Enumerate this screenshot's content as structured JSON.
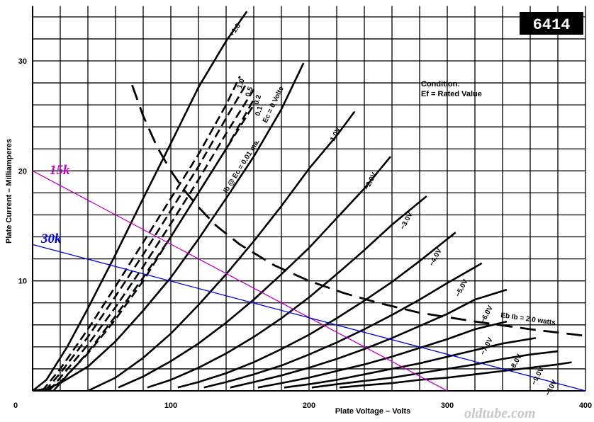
{
  "chart_data": {
    "type": "line",
    "tube_id": "6414",
    "xlabel": "Plate Voltage – Volts",
    "ylabel": "Plate Current – Milliamperes",
    "xlim": [
      0,
      400
    ],
    "ylim": [
      0,
      35
    ],
    "x_ticks": [
      0,
      100,
      200,
      300,
      400
    ],
    "y_ticks": [
      10,
      20,
      30
    ],
    "grid": true,
    "grid_x_step": 20,
    "grid_y_step": 2,
    "condition": {
      "line1": "Condition:",
      "line2": "Ef = Rated Value"
    },
    "watermark": "oldtube.com",
    "plate_curves": [
      {
        "name": "+1.0",
        "label": "+1.0",
        "style": "solid",
        "points": [
          [
            0,
            0
          ],
          [
            10,
            1
          ],
          [
            25,
            4
          ],
          [
            40,
            7.5
          ],
          [
            60,
            12.4
          ],
          [
            80,
            17.5
          ],
          [
            100,
            22.5
          ],
          [
            120,
            27.6
          ],
          [
            140,
            31.8
          ],
          [
            155,
            34.5
          ]
        ]
      },
      {
        "name": "Ec = 0 Volts",
        "label": "Ec = 0 Volts",
        "style": "solid",
        "points": [
          [
            0,
            0
          ],
          [
            10,
            0.2
          ],
          [
            20,
            0.7
          ],
          [
            40,
            2.2
          ],
          [
            60,
            4.5
          ],
          [
            80,
            7.3
          ],
          [
            100,
            10.3
          ],
          [
            120,
            13.8
          ],
          [
            140,
            17.5
          ],
          [
            160,
            21.3
          ],
          [
            180,
            25.6
          ],
          [
            196,
            29.8
          ]
        ]
      },
      {
        "name": "Ib @ Ec = 0.01 ma.",
        "label": "Ib @ Ec = 0.01 ma.",
        "style": "dashed",
        "points": [
          [
            10,
            0
          ],
          [
            20,
            0.8
          ],
          [
            40,
            3.4
          ],
          [
            60,
            6.5
          ],
          [
            80,
            10
          ],
          [
            100,
            14
          ],
          [
            120,
            18
          ],
          [
            140,
            22
          ],
          [
            160,
            26
          ]
        ]
      },
      {
        "name": "-1.0V",
        "label": "−1.0V",
        "style": "solid",
        "points": [
          [
            40,
            0
          ],
          [
            60,
            1.2
          ],
          [
            80,
            3
          ],
          [
            100,
            5.2
          ],
          [
            120,
            7.8
          ],
          [
            140,
            10.6
          ],
          [
            160,
            13.6
          ],
          [
            180,
            16.8
          ],
          [
            200,
            20.2
          ],
          [
            220,
            23.2
          ],
          [
            233,
            25.4
          ]
        ]
      },
      {
        "name": "-2.0V",
        "label": "−2.0V",
        "style": "solid",
        "points": [
          [
            62,
            0.3
          ],
          [
            80,
            1.3
          ],
          [
            100,
            2.7
          ],
          [
            120,
            4.3
          ],
          [
            140,
            6.2
          ],
          [
            160,
            8.3
          ],
          [
            180,
            10.6
          ],
          [
            200,
            13
          ],
          [
            220,
            15.7
          ],
          [
            240,
            18.4
          ],
          [
            259,
            21.3
          ]
        ]
      },
      {
        "name": "-3.0V",
        "label": "−3.0V",
        "style": "solid",
        "points": [
          [
            83,
            0.3
          ],
          [
            100,
            1
          ],
          [
            120,
            2.1
          ],
          [
            140,
            3.4
          ],
          [
            160,
            4.9
          ],
          [
            180,
            6.6
          ],
          [
            200,
            8.5
          ],
          [
            220,
            10.6
          ],
          [
            240,
            12.8
          ],
          [
            260,
            15.1
          ],
          [
            285,
            17.7
          ]
        ]
      },
      {
        "name": "-4.0V",
        "label": "−4.0V",
        "style": "solid",
        "points": [
          [
            105,
            0.3
          ],
          [
            120,
            0.8
          ],
          [
            140,
            1.6
          ],
          [
            160,
            2.6
          ],
          [
            180,
            3.8
          ],
          [
            200,
            5.1
          ],
          [
            220,
            6.6
          ],
          [
            240,
            8.2
          ],
          [
            260,
            9.9
          ],
          [
            280,
            11.8
          ],
          [
            306,
            14.4
          ]
        ]
      },
      {
        "name": "-5.0V",
        "label": "−5.0V",
        "style": "solid",
        "points": [
          [
            124,
            0.3
          ],
          [
            140,
            0.8
          ],
          [
            160,
            1.5
          ],
          [
            180,
            2.3
          ],
          [
            200,
            3.3
          ],
          [
            220,
            4.4
          ],
          [
            240,
            5.6
          ],
          [
            260,
            6.9
          ],
          [
            280,
            8.3
          ],
          [
            300,
            9.8
          ],
          [
            325,
            11.6
          ]
        ]
      },
      {
        "name": "-6.0V",
        "label": "−6.0V",
        "style": "solid",
        "points": [
          [
            143,
            0.3
          ],
          [
            160,
            0.8
          ],
          [
            180,
            1.4
          ],
          [
            200,
            2.1
          ],
          [
            220,
            2.9
          ],
          [
            240,
            3.8
          ],
          [
            260,
            4.8
          ],
          [
            280,
            5.9
          ],
          [
            300,
            7
          ],
          [
            320,
            8.3
          ],
          [
            343,
            9.2
          ]
        ]
      },
      {
        "name": "-7.0V",
        "label": "−7.0V",
        "style": "solid",
        "points": [
          [
            163,
            0.3
          ],
          [
            180,
            0.7
          ],
          [
            200,
            1.2
          ],
          [
            220,
            1.8
          ],
          [
            240,
            2.4
          ],
          [
            260,
            3.1
          ],
          [
            280,
            3.9
          ],
          [
            300,
            4.7
          ],
          [
            320,
            5.6
          ],
          [
            343,
            6.3
          ]
        ]
      },
      {
        "name": "-8.0V",
        "label": "−8.0V",
        "style": "solid",
        "points": [
          [
            182,
            0.3
          ],
          [
            200,
            0.6
          ],
          [
            220,
            1
          ],
          [
            240,
            1.5
          ],
          [
            260,
            2
          ],
          [
            280,
            2.5
          ],
          [
            300,
            3.1
          ],
          [
            320,
            3.7
          ],
          [
            340,
            4.3
          ],
          [
            364,
            4.8
          ]
        ]
      },
      {
        "name": "-9.0V",
        "label": "−9.0V",
        "style": "solid",
        "points": [
          [
            202,
            0.3
          ],
          [
            220,
            0.6
          ],
          [
            240,
            0.9
          ],
          [
            260,
            1.2
          ],
          [
            280,
            1.6
          ],
          [
            300,
            2
          ],
          [
            320,
            2.4
          ],
          [
            340,
            2.9
          ],
          [
            360,
            3.3
          ],
          [
            380,
            3.6
          ]
        ]
      },
      {
        "name": "-10V",
        "label": "−10V",
        "style": "solid",
        "points": [
          [
            222,
            0.3
          ],
          [
            240,
            0.5
          ],
          [
            260,
            0.7
          ],
          [
            280,
            1
          ],
          [
            300,
            1.2
          ],
          [
            320,
            1.5
          ],
          [
            340,
            1.8
          ],
          [
            360,
            2.1
          ],
          [
            380,
            2.4
          ],
          [
            390,
            2.6
          ]
        ]
      }
    ],
    "dashed_grid_curves": [
      {
        "label": "1.0",
        "points": [
          [
            7,
            0
          ],
          [
            20,
            2
          ],
          [
            40,
            5.6
          ],
          [
            60,
            9.5
          ],
          [
            80,
            13.5
          ],
          [
            100,
            17.5
          ],
          [
            120,
            21.5
          ],
          [
            140,
            26
          ],
          [
            150,
            28.6
          ]
        ]
      },
      {
        "label": "0.5",
        "points": [
          [
            9,
            0
          ],
          [
            20,
            1.6
          ],
          [
            40,
            4.9
          ],
          [
            60,
            8.6
          ],
          [
            80,
            12.4
          ],
          [
            100,
            16.4
          ],
          [
            120,
            20.4
          ],
          [
            140,
            24.8
          ],
          [
            155,
            28
          ]
        ]
      },
      {
        "label": "0.2",
        "points": [
          [
            12,
            0
          ],
          [
            20,
            1.2
          ],
          [
            40,
            4.2
          ],
          [
            60,
            7.6
          ],
          [
            80,
            11.3
          ],
          [
            100,
            15.2
          ],
          [
            120,
            19.2
          ],
          [
            140,
            23.4
          ],
          [
            160,
            27.4
          ]
        ]
      },
      {
        "label": "0.1",
        "points": [
          [
            15,
            0
          ],
          [
            20,
            0.7
          ],
          [
            40,
            3.5
          ],
          [
            60,
            6.8
          ],
          [
            80,
            10.3
          ],
          [
            100,
            14
          ],
          [
            120,
            18
          ],
          [
            140,
            22
          ],
          [
            160,
            26.5
          ]
        ]
      }
    ],
    "dissipation_curve": {
      "label": "Eb Ib = 2.0 watts",
      "style": "dashed",
      "points": [
        [
          72,
          27.8
        ],
        [
          80,
          25
        ],
        [
          90,
          22.2
        ],
        [
          100,
          20
        ],
        [
          110,
          18.2
        ],
        [
          120,
          16.7
        ],
        [
          133,
          15
        ],
        [
          150,
          13.3
        ],
        [
          175,
          11.4
        ],
        [
          200,
          10
        ],
        [
          225,
          8.9
        ],
        [
          250,
          8
        ],
        [
          280,
          7.1
        ],
        [
          320,
          6.3
        ],
        [
          360,
          5.6
        ],
        [
          400,
          5
        ]
      ]
    },
    "load_lines": [
      {
        "name": "15k",
        "label": "15k",
        "color": "#c000c0",
        "points": [
          [
            0,
            20
          ],
          [
            300,
            0
          ]
        ]
      },
      {
        "name": "30k",
        "label": "30k",
        "color": "#0000d0",
        "points": [
          [
            0,
            13.3
          ],
          [
            400,
            0
          ]
        ]
      }
    ]
  }
}
